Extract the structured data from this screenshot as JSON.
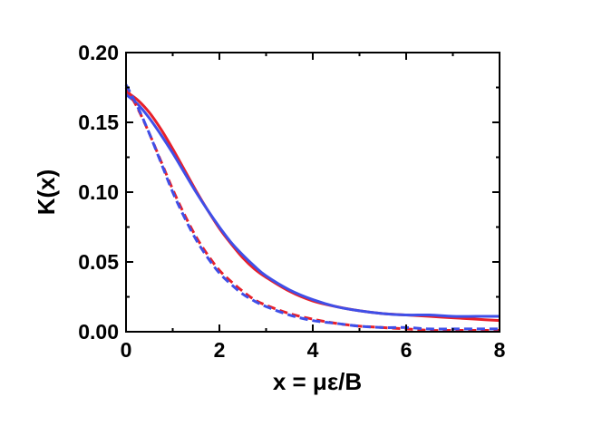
{
  "chart_data": {
    "type": "line",
    "title": "",
    "xlabel": "x = με/B",
    "ylabel": "K(x)",
    "xlim": [
      0,
      8
    ],
    "ylim": [
      0,
      0.2
    ],
    "xticks": [
      "0",
      "2",
      "4",
      "6",
      "8"
    ],
    "yticks": [
      "0.00",
      "0.05",
      "0.10",
      "0.15",
      "0.20"
    ],
    "grid": false,
    "legend": "none",
    "series": [
      {
        "color": "#e8202a",
        "style": "solid",
        "x": [
          0,
          0.25,
          0.5,
          0.75,
          1,
          1.25,
          1.5,
          1.75,
          2,
          2.25,
          2.5,
          2.75,
          3,
          3.5,
          4,
          4.5,
          5,
          5.5,
          6,
          6.5,
          7,
          7.5,
          8
        ],
        "y": [
          0.172,
          0.166,
          0.157,
          0.145,
          0.131,
          0.116,
          0.101,
          0.087,
          0.074,
          0.063,
          0.053,
          0.045,
          0.039,
          0.029,
          0.022,
          0.018,
          0.015,
          0.013,
          0.012,
          0.011,
          0.01,
          0.009,
          0.008
        ]
      },
      {
        "color": "#3f4fe8",
        "style": "solid",
        "x": [
          0,
          0.25,
          0.5,
          0.75,
          1,
          1.25,
          1.5,
          1.75,
          2,
          2.25,
          2.5,
          2.75,
          3,
          3.5,
          4,
          4.5,
          5,
          5.5,
          6,
          6.5,
          7,
          7.5,
          8
        ],
        "y": [
          0.17,
          0.163,
          0.153,
          0.141,
          0.128,
          0.114,
          0.1,
          0.087,
          0.075,
          0.064,
          0.055,
          0.047,
          0.04,
          0.03,
          0.023,
          0.018,
          0.015,
          0.013,
          0.012,
          0.012,
          0.011,
          0.011,
          0.011
        ]
      },
      {
        "color": "#e8202a",
        "style": "dashed",
        "x": [
          0,
          0.25,
          0.5,
          0.75,
          1,
          1.25,
          1.5,
          1.75,
          2,
          2.25,
          2.5,
          2.75,
          3,
          3.5,
          4,
          4.5,
          5,
          5.5,
          6,
          6.5,
          7,
          7.5,
          8
        ],
        "y": [
          0.175,
          0.16,
          0.142,
          0.122,
          0.102,
          0.084,
          0.068,
          0.055,
          0.044,
          0.036,
          0.029,
          0.023,
          0.019,
          0.013,
          0.009,
          0.006,
          0.004,
          0.003,
          0.002,
          0.001,
          0.001,
          0.001,
          0.001
        ]
      },
      {
        "color": "#3f4fe8",
        "style": "dashed",
        "x": [
          0,
          0.25,
          0.5,
          0.75,
          1,
          1.25,
          1.5,
          1.75,
          2,
          2.25,
          2.5,
          2.75,
          3,
          3.5,
          4,
          4.5,
          5,
          5.5,
          6,
          6.5,
          7,
          7.5,
          8
        ],
        "y": [
          0.177,
          0.161,
          0.142,
          0.121,
          0.1,
          0.082,
          0.066,
          0.053,
          0.042,
          0.034,
          0.027,
          0.022,
          0.018,
          0.012,
          0.008,
          0.006,
          0.004,
          0.003,
          0.003,
          0.002,
          0.002,
          0.002,
          0.002
        ]
      }
    ]
  }
}
